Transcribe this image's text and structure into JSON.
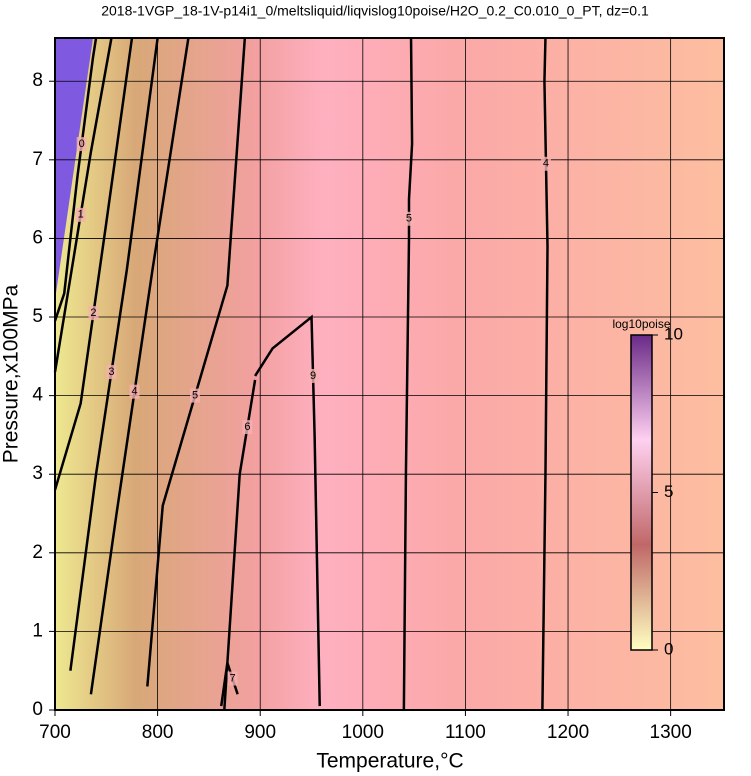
{
  "chart_data": {
    "type": "contour",
    "title": "2018-1VGP_18-1V-p14i1_0/meltsliquid/liqvislog10poise/H2O_0.2_C0.010_0_PT, dz=0.1",
    "x_label": "Temperature,°C",
    "y_label": "Pressure,x100MPa",
    "xlim": [
      700,
      1352
    ],
    "ylim": [
      0,
      8.55
    ],
    "xticks": [
      700,
      800,
      900,
      1000,
      1100,
      1200,
      1300
    ],
    "yticks": [
      0,
      1,
      2,
      3,
      4,
      5,
      6,
      7,
      8
    ],
    "grid": true,
    "color": "#000000",
    "colorbar": {
      "label": "log10poise",
      "lim": [
        0,
        10
      ],
      "ticks": [
        0,
        5,
        10
      ],
      "colors": [
        "#ffffc0",
        "#c06868",
        "#ffd0f0",
        "#6a2a88"
      ]
    },
    "contours": [
      {
        "level": 0,
        "x": [
          700,
          709,
          715,
          722,
          730,
          737,
          740
        ],
        "y": [
          4.95,
          5.3,
          6.0,
          6.8,
          7.6,
          8.3,
          8.55
        ]
      },
      {
        "level": 1,
        "x": [
          700,
          715,
          735,
          755
        ],
        "y": [
          4.3,
          5.5,
          7.1,
          8.55
        ]
      },
      {
        "level": 2,
        "x": [
          700,
          725,
          750,
          775
        ],
        "y": [
          2.8,
          3.9,
          6.2,
          8.55
        ]
      },
      {
        "level": 3,
        "x": [
          715,
          740,
          770,
          800
        ],
        "y": [
          0.5,
          3.0,
          5.6,
          8.55
        ]
      },
      {
        "level": 4,
        "x": [
          735,
          760,
          795,
          830
        ],
        "y": [
          0.2,
          2.5,
          5.6,
          8.55
        ]
      },
      {
        "level": 5,
        "x": [
          790,
          805,
          868,
          885
        ],
        "y": [
          0.3,
          2.6,
          5.4,
          8.55
        ]
      },
      {
        "level": 6,
        "x": [
          865,
          880,
          895
        ],
        "y": [
          0.0,
          3.0,
          4.2
        ]
      },
      {
        "level": 7,
        "x": [
          862,
          868,
          878
        ],
        "y": [
          0.05,
          0.6,
          0.2
        ]
      },
      {
        "level": 9,
        "x": [
          895,
          912,
          950,
          953,
          958
        ],
        "y": [
          4.25,
          4.6,
          5.0,
          3.5,
          0.05
        ]
      },
      {
        "level": 5,
        "x": [
          1040,
          1042,
          1045,
          1045,
          1048,
          1047
        ],
        "y": [
          0.0,
          3.0,
          6.0,
          6.5,
          7.2,
          8.55
        ]
      },
      {
        "level": 4,
        "x": [
          1175,
          1178,
          1180,
          1177,
          1178
        ],
        "y": [
          0.0,
          3.0,
          5.9,
          8.0,
          8.55
        ]
      }
    ]
  }
}
